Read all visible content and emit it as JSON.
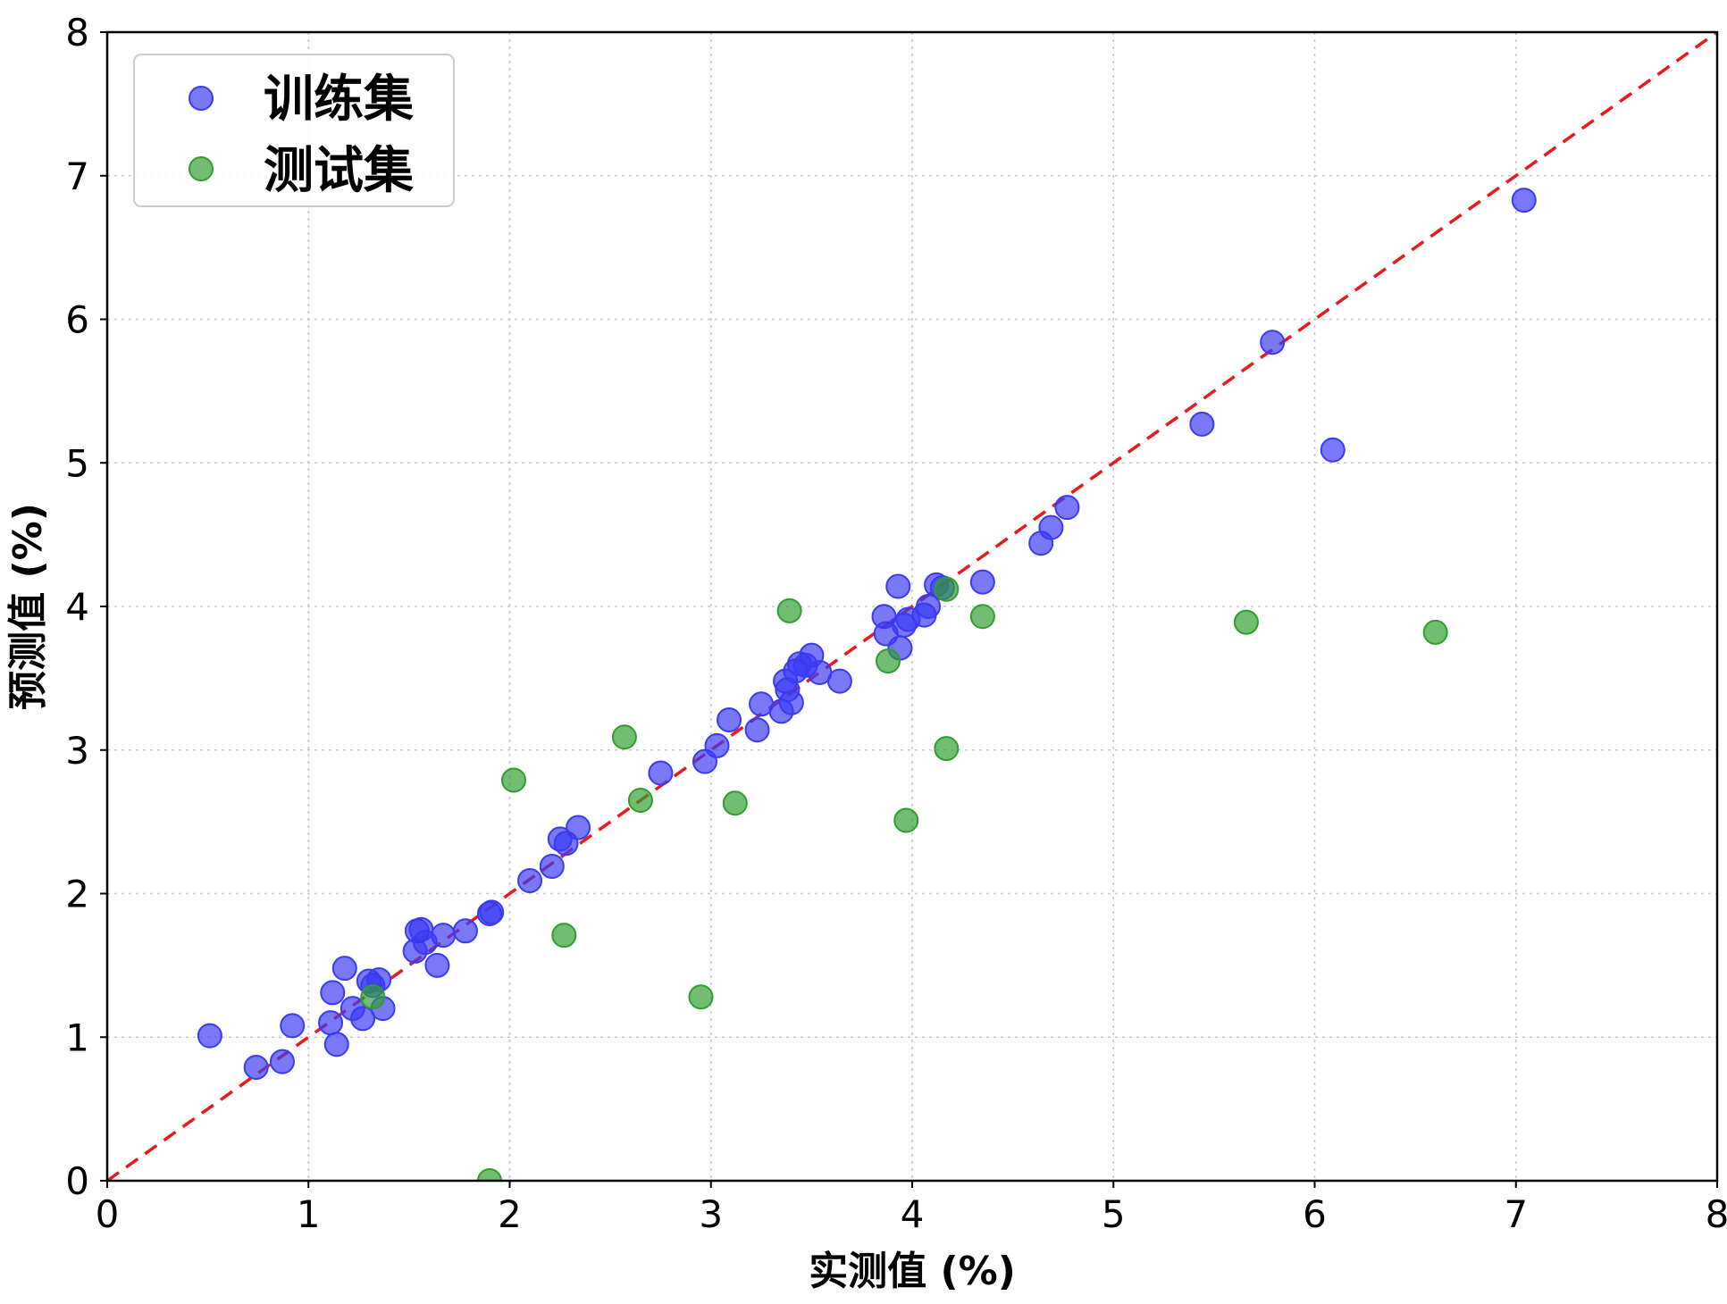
{
  "chart_data": {
    "type": "scatter",
    "title": "",
    "xlabel": "实测值 (%)",
    "ylabel": "预测值 (%)",
    "xlim": [
      0,
      8
    ],
    "ylim": [
      0,
      8
    ],
    "xticks": [
      "0",
      "1",
      "2",
      "3",
      "4",
      "5",
      "6",
      "7",
      "8"
    ],
    "yticks": [
      "0",
      "1",
      "2",
      "3",
      "4",
      "5",
      "6",
      "7",
      "8"
    ],
    "grid": true,
    "legend_position": "top-left",
    "reference_line": {
      "style": "dashed",
      "color": "#e8191f",
      "from": [
        0,
        0
      ],
      "to": [
        8,
        8
      ]
    },
    "series": [
      {
        "name": "训练集",
        "color": "#3a3af5",
        "points": [
          [
            0.51,
            1.01
          ],
          [
            0.74,
            0.79
          ],
          [
            0.87,
            0.83
          ],
          [
            0.92,
            1.08
          ],
          [
            1.11,
            1.1
          ],
          [
            1.12,
            1.31
          ],
          [
            1.14,
            0.95
          ],
          [
            1.18,
            1.48
          ],
          [
            1.22,
            1.2
          ],
          [
            1.27,
            1.13
          ],
          [
            1.3,
            1.39
          ],
          [
            1.32,
            1.36
          ],
          [
            1.35,
            1.4
          ],
          [
            1.37,
            1.2
          ],
          [
            1.53,
            1.6
          ],
          [
            1.54,
            1.74
          ],
          [
            1.56,
            1.75
          ],
          [
            1.58,
            1.66
          ],
          [
            1.64,
            1.5
          ],
          [
            1.67,
            1.71
          ],
          [
            1.78,
            1.74
          ],
          [
            1.9,
            1.86
          ],
          [
            1.91,
            1.87
          ],
          [
            2.1,
            2.09
          ],
          [
            2.21,
            2.19
          ],
          [
            2.25,
            2.38
          ],
          [
            2.28,
            2.35
          ],
          [
            2.34,
            2.46
          ],
          [
            2.75,
            2.84
          ],
          [
            2.97,
            2.92
          ],
          [
            3.03,
            3.03
          ],
          [
            3.09,
            3.21
          ],
          [
            3.23,
            3.14
          ],
          [
            3.25,
            3.32
          ],
          [
            3.35,
            3.27
          ],
          [
            3.37,
            3.48
          ],
          [
            3.38,
            3.42
          ],
          [
            3.4,
            3.33
          ],
          [
            3.42,
            3.55
          ],
          [
            3.44,
            3.6
          ],
          [
            3.47,
            3.59
          ],
          [
            3.5,
            3.66
          ],
          [
            3.54,
            3.54
          ],
          [
            3.64,
            3.48
          ],
          [
            3.86,
            3.93
          ],
          [
            3.87,
            3.81
          ],
          [
            3.93,
            4.14
          ],
          [
            3.94,
            3.71
          ],
          [
            3.96,
            3.87
          ],
          [
            3.98,
            3.91
          ],
          [
            4.06,
            3.94
          ],
          [
            4.08,
            4.0
          ],
          [
            4.12,
            4.15
          ],
          [
            4.15,
            4.13
          ],
          [
            4.35,
            4.17
          ],
          [
            4.64,
            4.44
          ],
          [
            4.69,
            4.55
          ],
          [
            4.77,
            4.69
          ],
          [
            5.44,
            5.27
          ],
          [
            5.79,
            5.84
          ],
          [
            6.09,
            5.09
          ],
          [
            7.04,
            6.83
          ]
        ]
      },
      {
        "name": "测试集",
        "color": "#2f9e2f",
        "points": [
          [
            1.32,
            1.28
          ],
          [
            1.9,
            0.0
          ],
          [
            2.02,
            2.79
          ],
          [
            2.27,
            1.71
          ],
          [
            2.57,
            3.09
          ],
          [
            2.65,
            2.65
          ],
          [
            2.95,
            1.28
          ],
          [
            3.12,
            2.63
          ],
          [
            3.39,
            3.97
          ],
          [
            3.88,
            3.62
          ],
          [
            3.97,
            2.51
          ],
          [
            4.17,
            3.01
          ],
          [
            4.17,
            4.12
          ],
          [
            4.35,
            3.93
          ],
          [
            5.66,
            3.89
          ],
          [
            6.6,
            3.82
          ]
        ]
      }
    ]
  }
}
